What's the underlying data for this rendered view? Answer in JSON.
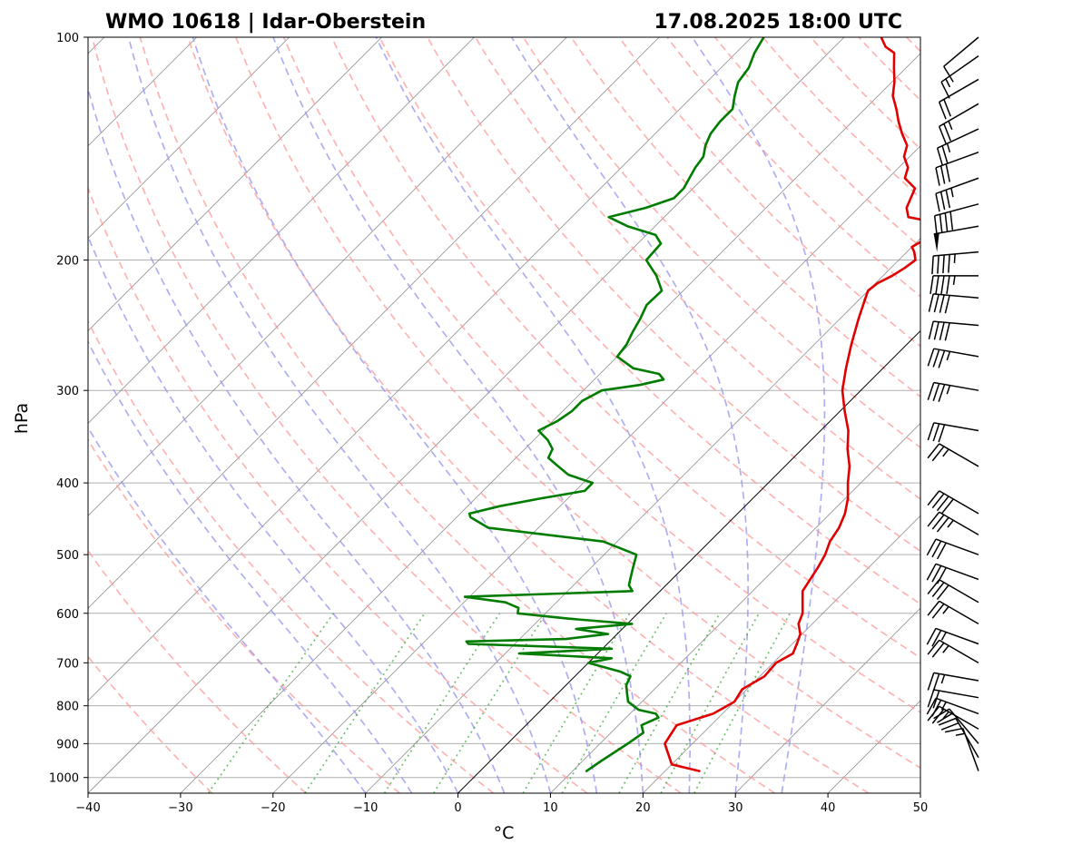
{
  "chart_data": {
    "type": "line",
    "title_left": "WMO 10618 | Idar-Oberstein",
    "title_right": "17.08.2025 18:00 UTC",
    "xlabel": "°C",
    "ylabel": "hPa",
    "xlim": [
      -40,
      50
    ],
    "ylim": [
      1050,
      100
    ],
    "y_scale": "log",
    "x_ticks": [
      -40,
      -30,
      -20,
      -10,
      0,
      10,
      20,
      30,
      40,
      50
    ],
    "x_tick_labels": [
      "−40",
      "−30",
      "−20",
      "−10",
      "0",
      "10",
      "20",
      "30",
      "40",
      "50"
    ],
    "y_ticks": [
      100,
      200,
      300,
      400,
      500,
      600,
      700,
      800,
      900,
      1000
    ],
    "y_tick_labels": [
      "100",
      "200",
      "300",
      "400",
      "500",
      "600",
      "700",
      "800",
      "900",
      "1000"
    ],
    "grid": true,
    "skew": 45,
    "series": [
      {
        "color": "#e00000",
        "points": [
          [
            23.7,
            980
          ],
          [
            20,
            960
          ],
          [
            17,
            900
          ],
          [
            16.3,
            850
          ],
          [
            19,
            820
          ],
          [
            20,
            790
          ],
          [
            19.5,
            760
          ],
          [
            20.5,
            730
          ],
          [
            20.3,
            700
          ],
          [
            21.1,
            680
          ],
          [
            20.5,
            660
          ],
          [
            19.8,
            640
          ],
          [
            18.5,
            620
          ],
          [
            17.8,
            600
          ],
          [
            15.4,
            560
          ],
          [
            14.5,
            520
          ],
          [
            13.9,
            500
          ],
          [
            13,
            480
          ],
          [
            12.5,
            460
          ],
          [
            11.6,
            440
          ],
          [
            10.3,
            420
          ],
          [
            8.6,
            400
          ],
          [
            7,
            380
          ],
          [
            4.9,
            360
          ],
          [
            3,
            340
          ],
          [
            0.5,
            320
          ],
          [
            -2,
            300
          ],
          [
            -4,
            280
          ],
          [
            -6,
            260
          ],
          [
            -8,
            240
          ],
          [
            -9.5,
            225
          ],
          [
            -10,
            220
          ],
          [
            -9.8,
            215
          ],
          [
            -9,
            210
          ],
          [
            -8.5,
            205
          ],
          [
            -8.2,
            200
          ],
          [
            -9.2,
            195
          ],
          [
            -10,
            192
          ],
          [
            -9,
            185
          ],
          [
            -10,
            178
          ],
          [
            -13.6,
            175
          ],
          [
            -14.8,
            170
          ],
          [
            -16,
            160
          ],
          [
            -18.2,
            155
          ],
          [
            -19,
            150
          ],
          [
            -20.6,
            145
          ],
          [
            -21.5,
            140
          ],
          [
            -23.3,
            135
          ],
          [
            -25,
            130
          ],
          [
            -26.6,
            125
          ],
          [
            -28.4,
            120
          ],
          [
            -29.7,
            115
          ],
          [
            -31.3,
            110
          ],
          [
            -32.9,
            105
          ],
          [
            -34.5,
            103
          ],
          [
            -36,
            100
          ]
        ]
      },
      {
        "color": "#007c00",
        "points": [
          [
            11.5,
            980
          ],
          [
            12,
            950
          ],
          [
            13,
            900
          ],
          [
            13.5,
            870
          ],
          [
            12.5,
            850
          ],
          [
            13.5,
            830
          ],
          [
            12.8,
            820
          ],
          [
            10.5,
            810
          ],
          [
            8.5,
            790
          ],
          [
            7.5,
            770
          ],
          [
            6.5,
            750
          ],
          [
            6,
            730
          ],
          [
            4.5,
            720
          ],
          [
            0,
            700
          ],
          [
            2,
            690
          ],
          [
            -8.5,
            680
          ],
          [
            1,
            670
          ],
          [
            -15,
            660
          ],
          [
            -15.5,
            655
          ],
          [
            -5,
            650
          ],
          [
            -1,
            640
          ],
          [
            -5,
            630
          ],
          [
            0.5,
            620
          ],
          [
            -7,
            610
          ],
          [
            -13,
            600
          ],
          [
            -13.5,
            590
          ],
          [
            -15.5,
            580
          ],
          [
            -20.5,
            570
          ],
          [
            -3,
            560
          ],
          [
            -4,
            550
          ],
          [
            -4.5,
            540
          ],
          [
            -5.5,
            520
          ],
          [
            -6.5,
            500
          ],
          [
            -11.5,
            480
          ],
          [
            -25.4,
            460
          ],
          [
            -28.5,
            445
          ],
          [
            -29,
            440
          ],
          [
            -26.5,
            430
          ],
          [
            -23,
            420
          ],
          [
            -19,
            410
          ],
          [
            -19,
            400
          ],
          [
            -22.5,
            390
          ],
          [
            -24.5,
            380
          ],
          [
            -26.5,
            370
          ],
          [
            -27,
            360
          ],
          [
            -28.5,
            350
          ],
          [
            -30.5,
            340
          ],
          [
            -29.5,
            330
          ],
          [
            -29,
            320
          ],
          [
            -29,
            310
          ],
          [
            -28,
            300
          ],
          [
            -24.5,
            295
          ],
          [
            -22.5,
            290
          ],
          [
            -23.6,
            285
          ],
          [
            -27,
            280
          ],
          [
            -30,
            270
          ],
          [
            -30.3,
            260
          ],
          [
            -31,
            250
          ],
          [
            -31.6,
            240
          ],
          [
            -32.4,
            230
          ],
          [
            -32.3,
            220
          ],
          [
            -34.5,
            210
          ],
          [
            -37.3,
            200
          ],
          [
            -37.5,
            190
          ],
          [
            -39,
            185
          ],
          [
            -43,
            180
          ],
          [
            -46,
            175
          ],
          [
            -43,
            170
          ],
          [
            -41,
            165
          ],
          [
            -41,
            160
          ],
          [
            -41.5,
            155
          ],
          [
            -42,
            150
          ],
          [
            -42.3,
            145
          ],
          [
            -43.3,
            140
          ],
          [
            -44,
            135
          ],
          [
            -44.3,
            130
          ],
          [
            -44.3,
            125
          ],
          [
            -45.5,
            120
          ],
          [
            -46.6,
            115
          ],
          [
            -47,
            110
          ],
          [
            -48,
            105
          ],
          [
            -48.7,
            100
          ]
        ]
      }
    ],
    "dry_adiabats_theta_c": [
      -30,
      -20,
      -10,
      0,
      10,
      20,
      30,
      40,
      50,
      60,
      70,
      80,
      90,
      100,
      110,
      120,
      130,
      140,
      150,
      160,
      170,
      180,
      190,
      200
    ],
    "moist_adiabats_start_t_c": [
      -10,
      -5,
      0,
      5,
      10,
      15,
      20,
      25,
      30,
      35
    ],
    "mixing_ratios_g_per_kg": [
      0.4,
      1,
      2,
      3,
      6,
      8,
      12,
      16,
      20
    ],
    "isotherms_c": [
      -120,
      -110,
      -100,
      -90,
      -80,
      -70,
      -60,
      -50,
      -40,
      -30,
      -20,
      -10,
      0,
      10,
      20,
      30,
      40,
      50
    ],
    "highlight_isotherm_c": 0,
    "colors": {
      "temperature": "#e00000",
      "dewpoint": "#007c00",
      "dry_adiabat": "#ff9a9a",
      "moist_adiabat": "#9a9af0",
      "mixing_ratio": "#44aa44",
      "isotherm": "#8c8c8c",
      "isobar": "#b0b0b0",
      "wind_barb": "#000000"
    },
    "wind_barbs": [
      {
        "p": 980,
        "dir": 340,
        "speed_kt": 15
      },
      {
        "p": 940,
        "dir": 330,
        "speed_kt": 20
      },
      {
        "p": 900,
        "dir": 320,
        "speed_kt": 20
      },
      {
        "p": 860,
        "dir": 300,
        "speed_kt": 25
      },
      {
        "p": 820,
        "dir": 290,
        "speed_kt": 25
      },
      {
        "p": 780,
        "dir": 280,
        "speed_kt": 20
      },
      {
        "p": 740,
        "dir": 280,
        "speed_kt": 25
      },
      {
        "p": 700,
        "dir": 300,
        "speed_kt": 25
      },
      {
        "p": 660,
        "dir": 290,
        "speed_kt": 25
      },
      {
        "p": 620,
        "dir": 300,
        "speed_kt": 25
      },
      {
        "p": 580,
        "dir": 300,
        "speed_kt": 30
      },
      {
        "p": 540,
        "dir": 290,
        "speed_kt": 30
      },
      {
        "p": 500,
        "dir": 290,
        "speed_kt": 30
      },
      {
        "p": 470,
        "dir": 300,
        "speed_kt": 35
      },
      {
        "p": 440,
        "dir": 300,
        "speed_kt": 40
      },
      {
        "p": 380,
        "dir": 300,
        "speed_kt": 25
      },
      {
        "p": 340,
        "dir": 280,
        "speed_kt": 30
      },
      {
        "p": 300,
        "dir": 280,
        "speed_kt": 35
      },
      {
        "p": 270,
        "dir": 280,
        "speed_kt": 35
      },
      {
        "p": 245,
        "dir": 275,
        "speed_kt": 40
      },
      {
        "p": 225,
        "dir": 275,
        "speed_kt": 40
      },
      {
        "p": 210,
        "dir": 270,
        "speed_kt": 45
      },
      {
        "p": 195,
        "dir": 265,
        "speed_kt": 45
      },
      {
        "p": 180,
        "dir": 260,
        "speed_kt": 50
      },
      {
        "p": 168,
        "dir": 255,
        "speed_kt": 40
      },
      {
        "p": 155,
        "dir": 250,
        "speed_kt": 35
      },
      {
        "p": 143,
        "dir": 250,
        "speed_kt": 30
      },
      {
        "p": 133,
        "dir": 245,
        "speed_kt": 25
      },
      {
        "p": 123,
        "dir": 240,
        "speed_kt": 25
      },
      {
        "p": 114,
        "dir": 240,
        "speed_kt": 20
      },
      {
        "p": 106,
        "dir": 235,
        "speed_kt": 15
      },
      {
        "p": 100,
        "dir": 230,
        "speed_kt": 10
      }
    ]
  }
}
